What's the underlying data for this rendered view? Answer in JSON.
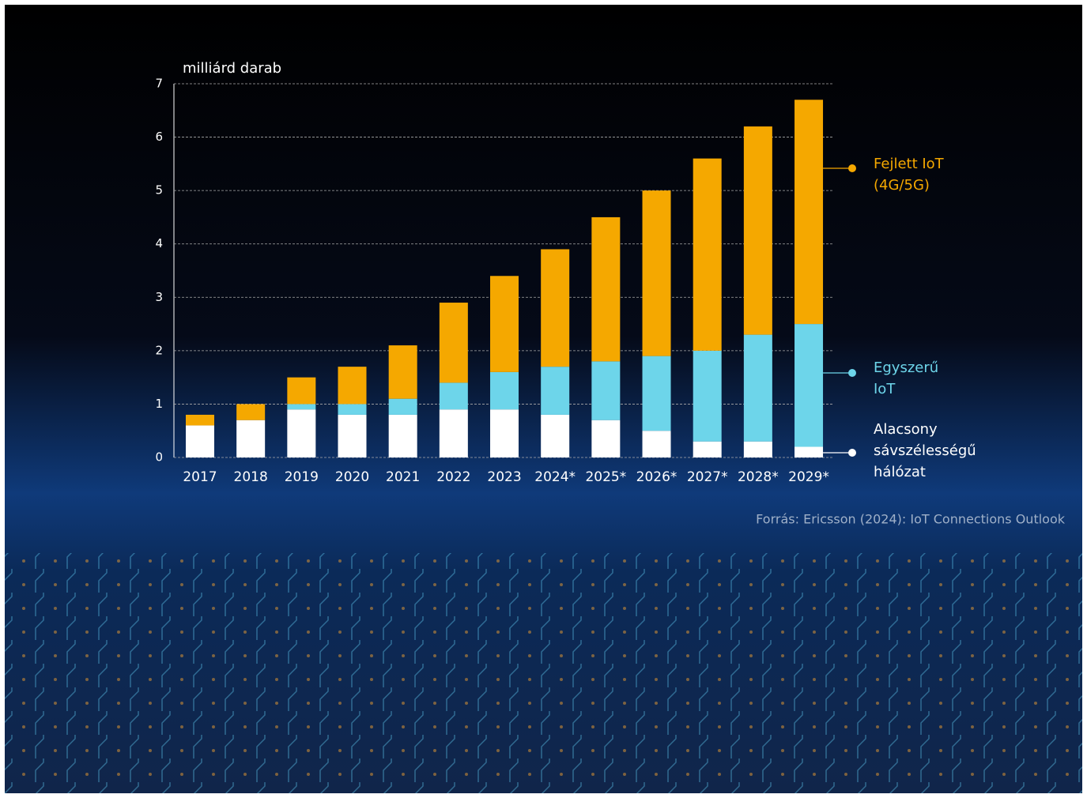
{
  "chart_data": {
    "type": "stacked_bar",
    "y_label": "milliárd darab",
    "source": "Forrás: Ericsson (2024): IoT Connections Outlook",
    "categories": [
      "2017",
      "2018",
      "2019",
      "2020",
      "2021",
      "2022",
      "2023",
      "2024*",
      "2025*",
      "2026*",
      "2027*",
      "2028*",
      "2029*"
    ],
    "series": [
      {
        "name": "Alacsony sávszélességű hálózat",
        "color": "#ffffff",
        "values": [
          0.6,
          0.7,
          0.9,
          0.8,
          0.8,
          0.9,
          0.9,
          0.8,
          0.7,
          0.5,
          0.3,
          0.3,
          0.2
        ]
      },
      {
        "name": "Egyszerű IoT",
        "color": "#6dd5ea",
        "values": [
          0,
          0,
          0.1,
          0.2,
          0.3,
          0.5,
          0.7,
          0.9,
          1.1,
          1.4,
          1.7,
          2.0,
          2.3
        ]
      },
      {
        "name": "Fejlett IoT (4G/5G)",
        "color": "#f5a800",
        "values": [
          0.2,
          0.3,
          0.5,
          0.7,
          1.0,
          1.5,
          1.8,
          2.2,
          2.7,
          3.1,
          3.6,
          3.9,
          4.2
        ]
      }
    ],
    "ylim": [
      0,
      7
    ],
    "yticks": [
      0,
      1,
      2,
      3,
      4,
      5,
      6,
      7
    ],
    "grid": true
  }
}
